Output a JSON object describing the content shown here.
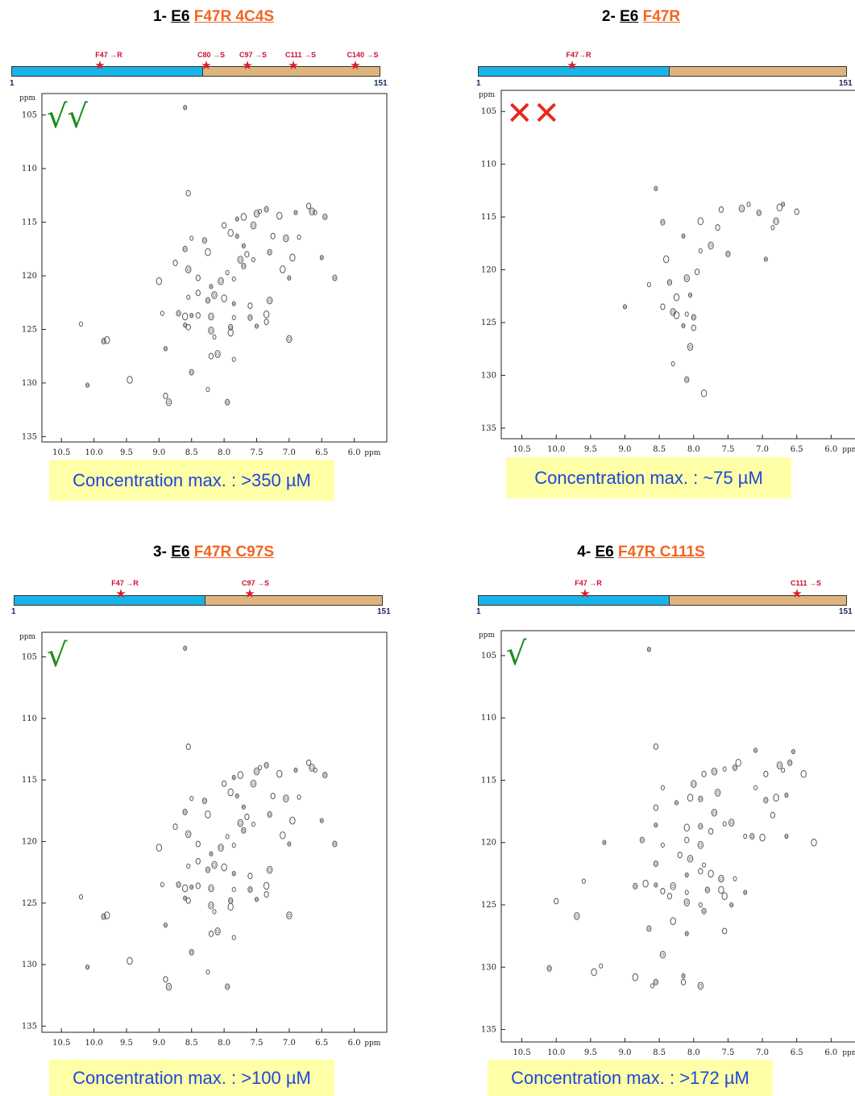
{
  "chart_data": [
    {
      "type": "scatter",
      "title_prefix": "1-",
      "title_protein": "E6",
      "title_mutation": "F47R 4C4S",
      "seq_start": "1",
      "seq_end": "151",
      "mutations": [
        "F47 →R",
        "C80 →S",
        "C97 →S",
        "C111 →S",
        "C140 →S"
      ],
      "verdict": "√√",
      "verdict_color": "#1e8c1e",
      "concentration": "Concentration max. : >350 µM",
      "xlabel": "ppm",
      "ylabel": "ppm",
      "xlim": [
        10.8,
        5.5
      ],
      "ylim": [
        103,
        135.5
      ],
      "xticks": [
        "10.5",
        "10.0",
        "9.5",
        "9.0",
        "8.5",
        "8.0",
        "7.5",
        "7.0",
        "6.5",
        "6.0"
      ],
      "yticks": [
        "105",
        "110",
        "115",
        "120",
        "125",
        "130",
        "135"
      ],
      "points": [
        [
          8.6,
          104.3
        ],
        [
          8.55,
          112.3
        ],
        [
          7.5,
          114.2
        ],
        [
          7.45,
          114
        ],
        [
          7.35,
          113.8
        ],
        [
          7.15,
          114.4
        ],
        [
          6.9,
          114.1
        ],
        [
          6.7,
          113.5
        ],
        [
          6.65,
          114
        ],
        [
          6.6,
          114.1
        ],
        [
          6.45,
          114.5
        ],
        [
          7.7,
          114.5
        ],
        [
          7.8,
          114.7
        ],
        [
          8.0,
          115.3
        ],
        [
          7.55,
          115.3
        ],
        [
          8.5,
          116.5
        ],
        [
          8.3,
          116.7
        ],
        [
          7.9,
          116
        ],
        [
          7.8,
          116.3
        ],
        [
          7.25,
          116.3
        ],
        [
          7.05,
          116.5
        ],
        [
          6.85,
          116.4
        ],
        [
          8.6,
          117.5
        ],
        [
          8.25,
          117.8
        ],
        [
          7.7,
          117.2
        ],
        [
          7.65,
          118
        ],
        [
          7.75,
          118.5
        ],
        [
          7.55,
          118.5
        ],
        [
          7.3,
          117.8
        ],
        [
          6.95,
          118.3
        ],
        [
          6.5,
          118.3
        ],
        [
          8.75,
          118.8
        ],
        [
          8.55,
          119.4
        ],
        [
          7.95,
          119.7
        ],
        [
          7.7,
          119.1
        ],
        [
          7.1,
          119.4
        ],
        [
          7.0,
          120.2
        ],
        [
          8.4,
          120.2
        ],
        [
          8.05,
          120.5
        ],
        [
          7.85,
          120.3
        ],
        [
          6.3,
          120.2
        ],
        [
          9.0,
          120.5
        ],
        [
          8.2,
          121
        ],
        [
          8.4,
          121.6
        ],
        [
          8.15,
          121.8
        ],
        [
          8.55,
          122
        ],
        [
          8.25,
          122.3
        ],
        [
          8.0,
          122.1
        ],
        [
          7.85,
          122.6
        ],
        [
          7.6,
          122.8
        ],
        [
          7.3,
          122.3
        ],
        [
          8.95,
          123.5
        ],
        [
          8.7,
          123.5
        ],
        [
          8.6,
          123.8
        ],
        [
          8.5,
          123.7
        ],
        [
          8.4,
          123.7
        ],
        [
          8.2,
          123.8
        ],
        [
          7.85,
          123.9
        ],
        [
          7.6,
          123.9
        ],
        [
          7.35,
          123.6
        ],
        [
          8.6,
          124.6
        ],
        [
          8.55,
          124.8
        ],
        [
          8.2,
          125.1
        ],
        [
          8.15,
          125.7
        ],
        [
          7.9,
          124.8
        ],
        [
          7.9,
          125.3
        ],
        [
          7.5,
          124.7
        ],
        [
          7.35,
          124.3
        ],
        [
          7.0,
          125.9
        ],
        [
          10.2,
          124.5
        ],
        [
          9.85,
          126.1
        ],
        [
          9.8,
          126
        ],
        [
          8.9,
          126.8
        ],
        [
          8.2,
          127.5
        ],
        [
          8.1,
          127.3
        ],
        [
          7.85,
          127.8
        ],
        [
          8.5,
          129
        ],
        [
          9.45,
          129.7
        ],
        [
          10.1,
          130.2
        ],
        [
          8.9,
          131.2
        ],
        [
          8.85,
          131.8
        ],
        [
          8.25,
          130.6
        ],
        [
          7.95,
          131.8
        ]
      ]
    },
    {
      "type": "scatter",
      "title_prefix": "2-",
      "title_protein": "E6",
      "title_mutation": "F47R",
      "seq_start": "1",
      "seq_end": "151",
      "mutations": [
        "F47→R"
      ],
      "verdict": "✕✕",
      "verdict_color": "#e8281e",
      "concentration": "Concentration max. : ~75 µM",
      "xlabel": "ppm",
      "ylabel": "ppm",
      "xlim": [
        10.8,
        5.5
      ],
      "ylim": [
        103,
        136
      ],
      "xticks": [
        "10.5",
        "10.0",
        "9.5",
        "9.0",
        "8.5",
        "8.0",
        "7.5",
        "7.0",
        "6.5",
        "6.0"
      ],
      "yticks": [
        "105",
        "110",
        "115",
        "120",
        "125",
        "130",
        "135"
      ],
      "points": [
        [
          8.55,
          112.3
        ],
        [
          7.6,
          114.3
        ],
        [
          7.3,
          114.2
        ],
        [
          7.2,
          113.8
        ],
        [
          7.05,
          114.6
        ],
        [
          6.75,
          114.1
        ],
        [
          6.7,
          113.8
        ],
        [
          6.5,
          114.5
        ],
        [
          6.8,
          115.4
        ],
        [
          6.85,
          116
        ],
        [
          8.45,
          115.5
        ],
        [
          7.9,
          115.4
        ],
        [
          8.15,
          116.8
        ],
        [
          7.65,
          116
        ],
        [
          7.75,
          117.7
        ],
        [
          7.9,
          118.2
        ],
        [
          7.5,
          118.5
        ],
        [
          8.4,
          119
        ],
        [
          6.95,
          119
        ],
        [
          7.95,
          120.2
        ],
        [
          8.1,
          120.8
        ],
        [
          8.65,
          121.4
        ],
        [
          8.35,
          121.2
        ],
        [
          8.25,
          122.6
        ],
        [
          8.05,
          122.4
        ],
        [
          8.45,
          123.5
        ],
        [
          8.3,
          124
        ],
        [
          8.1,
          124.2
        ],
        [
          8.0,
          124.5
        ],
        [
          8.25,
          124.3
        ],
        [
          8.15,
          125.3
        ],
        [
          8.0,
          125.5
        ],
        [
          8.05,
          127.3
        ],
        [
          8.3,
          128.9
        ],
        [
          8.1,
          130.4
        ],
        [
          7.85,
          131.7
        ],
        [
          9.0,
          123.5
        ]
      ]
    },
    {
      "type": "scatter",
      "title_prefix": "3-",
      "title_protein": "E6",
      "title_mutation": "F47R C97S",
      "seq_start": "1",
      "seq_end": "151",
      "mutations": [
        "F47 →R",
        "C97 →S"
      ],
      "verdict": "√",
      "verdict_color": "#1e8c1e",
      "concentration": "Concentration max. : >100 µM",
      "xlabel": "ppm",
      "ylabel": "ppm",
      "xlim": [
        10.8,
        5.5
      ],
      "ylim": [
        103,
        135.5
      ],
      "xticks": [
        "10.5",
        "10.0",
        "9.5",
        "9.0",
        "8.5",
        "8.0",
        "7.5",
        "7.0",
        "6.5",
        "6.0"
      ],
      "yticks": [
        "105",
        "110",
        "115",
        "120",
        "125",
        "130",
        "135"
      ],
      "points": [
        [
          8.6,
          104.3
        ],
        [
          8.55,
          112.3
        ],
        [
          7.5,
          114.3
        ],
        [
          7.45,
          114
        ],
        [
          7.35,
          113.8
        ],
        [
          7.15,
          114.5
        ],
        [
          6.9,
          114.2
        ],
        [
          6.7,
          113.6
        ],
        [
          6.65,
          114
        ],
        [
          6.6,
          114.2
        ],
        [
          6.45,
          114.6
        ],
        [
          7.75,
          114.6
        ],
        [
          7.85,
          114.8
        ],
        [
          8.0,
          115.3
        ],
        [
          7.55,
          115.3
        ],
        [
          8.5,
          116.5
        ],
        [
          8.3,
          116.7
        ],
        [
          7.9,
          116
        ],
        [
          7.8,
          116.3
        ],
        [
          7.25,
          116.3
        ],
        [
          7.05,
          116.5
        ],
        [
          6.85,
          116.4
        ],
        [
          8.6,
          117.6
        ],
        [
          8.25,
          117.8
        ],
        [
          7.7,
          117.2
        ],
        [
          7.65,
          118
        ],
        [
          7.75,
          118.5
        ],
        [
          7.55,
          118.6
        ],
        [
          7.3,
          117.8
        ],
        [
          6.95,
          118.3
        ],
        [
          6.5,
          118.3
        ],
        [
          8.75,
          118.8
        ],
        [
          8.55,
          119.4
        ],
        [
          7.95,
          119.6
        ],
        [
          7.7,
          119.1
        ],
        [
          7.1,
          119.5
        ],
        [
          7.0,
          120.2
        ],
        [
          8.4,
          120.2
        ],
        [
          8.05,
          120.5
        ],
        [
          7.85,
          120.3
        ],
        [
          6.3,
          120.2
        ],
        [
          9.0,
          120.5
        ],
        [
          8.2,
          121
        ],
        [
          8.4,
          121.6
        ],
        [
          8.15,
          121.9
        ],
        [
          8.55,
          122
        ],
        [
          8.25,
          122.3
        ],
        [
          8.0,
          122.1
        ],
        [
          7.85,
          122.6
        ],
        [
          7.6,
          122.8
        ],
        [
          7.3,
          122.3
        ],
        [
          8.95,
          123.5
        ],
        [
          8.7,
          123.5
        ],
        [
          8.6,
          123.8
        ],
        [
          8.5,
          123.7
        ],
        [
          8.4,
          123.6
        ],
        [
          8.2,
          123.8
        ],
        [
          7.85,
          123.9
        ],
        [
          7.6,
          123.9
        ],
        [
          7.35,
          123.6
        ],
        [
          8.6,
          124.6
        ],
        [
          8.55,
          124.8
        ],
        [
          8.2,
          125.2
        ],
        [
          8.15,
          125.7
        ],
        [
          7.9,
          124.8
        ],
        [
          7.9,
          125.3
        ],
        [
          7.5,
          124.7
        ],
        [
          7.35,
          124.3
        ],
        [
          7.0,
          126
        ],
        [
          10.2,
          124.5
        ],
        [
          9.85,
          126.1
        ],
        [
          9.8,
          126
        ],
        [
          8.9,
          126.8
        ],
        [
          8.2,
          127.5
        ],
        [
          8.1,
          127.3
        ],
        [
          7.85,
          127.8
        ],
        [
          8.5,
          129
        ],
        [
          9.45,
          129.7
        ],
        [
          10.1,
          130.2
        ],
        [
          8.9,
          131.2
        ],
        [
          8.85,
          131.8
        ],
        [
          8.25,
          130.6
        ],
        [
          7.95,
          131.8
        ]
      ]
    },
    {
      "type": "scatter",
      "title_prefix": "4-",
      "title_protein": "E6",
      "title_mutation": "F47R C111S",
      "seq_start": "1",
      "seq_end": "151",
      "mutations": [
        "F47 →R",
        "C111 →S"
      ],
      "verdict": "√",
      "verdict_color": "#1e8c1e",
      "concentration": "Concentration max. : >172 µM",
      "xlabel": "ppm",
      "ylabel": "ppm",
      "xlim": [
        10.8,
        5.5
      ],
      "ylim": [
        103,
        136
      ],
      "xticks": [
        "10.5",
        "10.0",
        "9.5",
        "9.0",
        "8.5",
        "8.0",
        "7.5",
        "7.0",
        "6.5",
        "6.0"
      ],
      "yticks": [
        "105",
        "110",
        "115",
        "120",
        "125",
        "130",
        "135"
      ],
      "points": [
        [
          8.65,
          104.5
        ],
        [
          8.55,
          112.3
        ],
        [
          7.7,
          114.3
        ],
        [
          7.55,
          114.1
        ],
        [
          7.4,
          114
        ],
        [
          7.35,
          113.6
        ],
        [
          7.1,
          112.6
        ],
        [
          6.95,
          114.5
        ],
        [
          6.75,
          113.8
        ],
        [
          6.7,
          114.2
        ],
        [
          6.6,
          113.6
        ],
        [
          6.4,
          114.5
        ],
        [
          6.55,
          112.7
        ],
        [
          7.85,
          114.5
        ],
        [
          8.0,
          115.3
        ],
        [
          8.45,
          115.6
        ],
        [
          7.9,
          116.5
        ],
        [
          8.05,
          116.4
        ],
        [
          8.25,
          116.8
        ],
        [
          8.55,
          117.2
        ],
        [
          7.65,
          116
        ],
        [
          7.1,
          115.6
        ],
        [
          6.95,
          116.6
        ],
        [
          6.8,
          116.4
        ],
        [
          6.65,
          116.2
        ],
        [
          6.85,
          117.8
        ],
        [
          7.7,
          117.6
        ],
        [
          7.55,
          118.5
        ],
        [
          7.9,
          118.7
        ],
        [
          8.1,
          118.8
        ],
        [
          8.55,
          118.6
        ],
        [
          7.75,
          119.1
        ],
        [
          7.45,
          118.4
        ],
        [
          7.25,
          119.5
        ],
        [
          7.15,
          119.5
        ],
        [
          7.0,
          119.6
        ],
        [
          6.65,
          119.5
        ],
        [
          8.1,
          119.8
        ],
        [
          7.9,
          120.2
        ],
        [
          8.45,
          120.2
        ],
        [
          8.75,
          119.8
        ],
        [
          6.25,
          120
        ],
        [
          9.3,
          120
        ],
        [
          8.2,
          121
        ],
        [
          8.05,
          121.3
        ],
        [
          7.85,
          121.8
        ],
        [
          8.55,
          121.7
        ],
        [
          7.75,
          122.5
        ],
        [
          8.1,
          122.6
        ],
        [
          7.9,
          122.3
        ],
        [
          7.6,
          122.9
        ],
        [
          7.4,
          122.9
        ],
        [
          8.85,
          123.5
        ],
        [
          8.7,
          123.3
        ],
        [
          8.55,
          123.4
        ],
        [
          8.45,
          123.9
        ],
        [
          8.3,
          123.5
        ],
        [
          8.1,
          124
        ],
        [
          7.8,
          123.8
        ],
        [
          7.6,
          123.8
        ],
        [
          7.25,
          124
        ],
        [
          8.35,
          124.3
        ],
        [
          8.1,
          124.8
        ],
        [
          7.9,
          125
        ],
        [
          7.85,
          125.5
        ],
        [
          7.55,
          124.3
        ],
        [
          7.45,
          125
        ],
        [
          10.0,
          124.7
        ],
        [
          9.7,
          125.9
        ],
        [
          9.6,
          123.1
        ],
        [
          8.65,
          126.9
        ],
        [
          8.3,
          126.3
        ],
        [
          8.1,
          127.3
        ],
        [
          7.55,
          127.1
        ],
        [
          8.45,
          129
        ],
        [
          9.35,
          129.9
        ],
        [
          10.1,
          130.1
        ],
        [
          8.85,
          130.8
        ],
        [
          8.15,
          130.7
        ],
        [
          8.15,
          131.2
        ],
        [
          7.9,
          131.5
        ],
        [
          8.6,
          131.5
        ],
        [
          8.55,
          131.2
        ],
        [
          9.45,
          130.4
        ]
      ]
    }
  ]
}
